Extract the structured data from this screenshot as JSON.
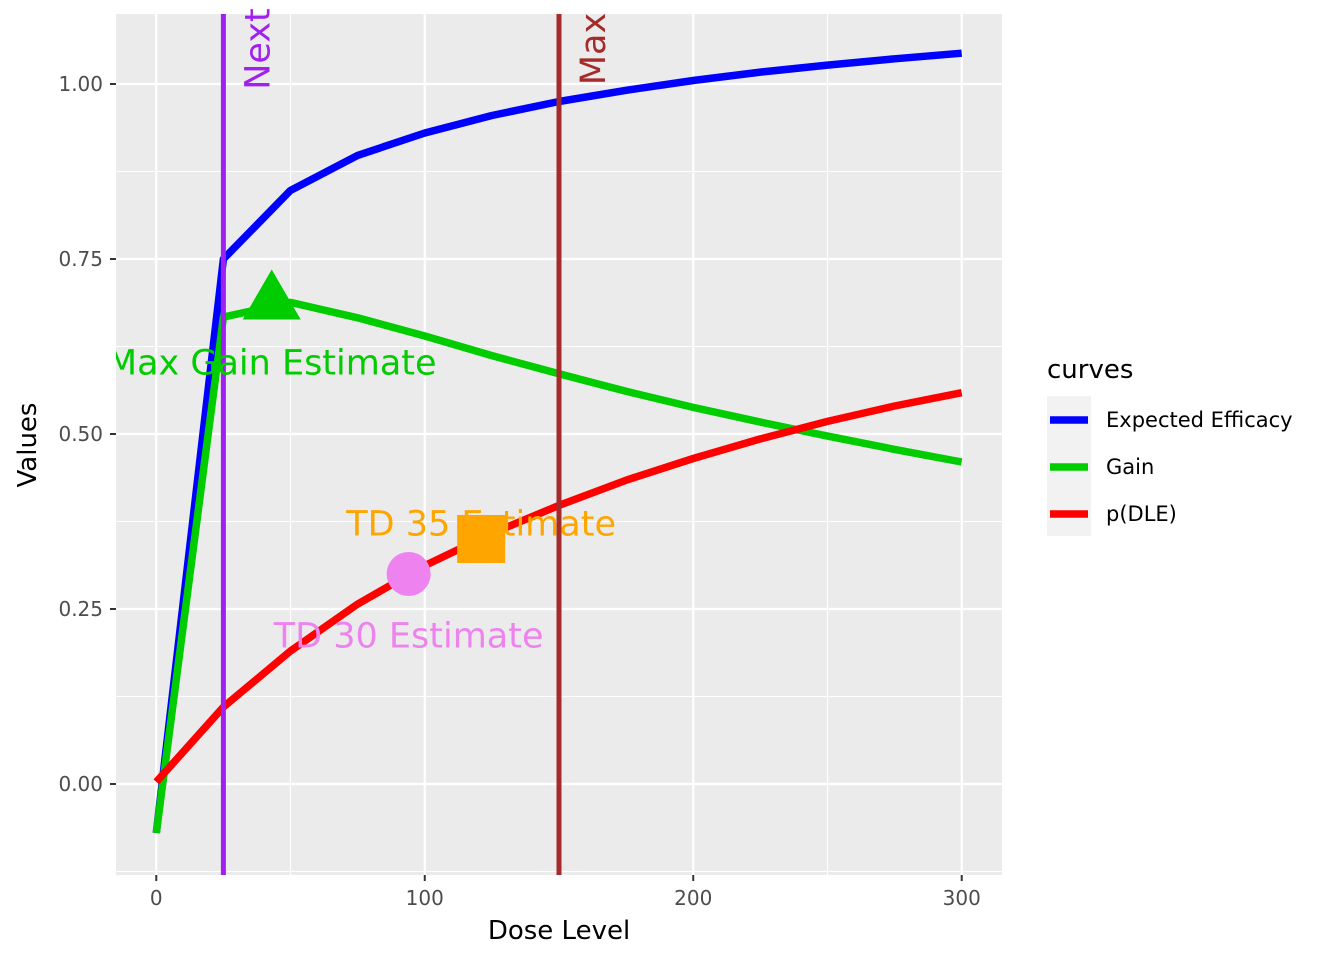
{
  "chart_data": {
    "type": "line",
    "xlabel": "Dose Level",
    "ylabel": "Values",
    "xlim": [
      -15,
      315
    ],
    "ylim": [
      -0.13,
      1.1
    ],
    "x_ticks": [
      0,
      100,
      200,
      300
    ],
    "x_tick_labels": [
      "0",
      "100",
      "200",
      "300"
    ],
    "y_ticks": [
      0,
      0.25,
      0.5,
      0.75,
      1.0
    ],
    "y_tick_labels": [
      "0.00",
      "0.25",
      "0.50",
      "0.75",
      "1.00"
    ],
    "grid": true,
    "legend": {
      "title": "curves",
      "position": "right",
      "entries": [
        "Expected Efficacy",
        "Gain",
        "p(DLE)"
      ]
    },
    "series": [
      {
        "name": "Expected Efficacy",
        "color": "#0000FF",
        "x": [
          0,
          25,
          50,
          75,
          100,
          125,
          150,
          175,
          200,
          225,
          250,
          275,
          300
        ],
        "y": [
          -0.07,
          0.75,
          0.848,
          0.898,
          0.93,
          0.955,
          0.975,
          0.991,
          1.005,
          1.017,
          1.027,
          1.036,
          1.044
        ]
      },
      {
        "name": "Gain",
        "color": "#00CC00",
        "x": [
          0,
          25,
          50,
          75,
          100,
          125,
          150,
          175,
          200,
          225,
          250,
          275,
          300
        ],
        "y": [
          -0.07,
          0.667,
          0.688,
          0.666,
          0.64,
          0.612,
          0.586,
          0.561,
          0.538,
          0.517,
          0.497,
          0.478,
          0.46
        ]
      },
      {
        "name": "p(DLE)",
        "color": "#FF0000",
        "x": [
          0,
          25,
          50,
          75,
          100,
          125,
          150,
          175,
          200,
          225,
          250,
          275,
          300
        ],
        "y": [
          0.003,
          0.11,
          0.19,
          0.257,
          0.312,
          0.358,
          0.398,
          0.434,
          0.465,
          0.493,
          0.518,
          0.54,
          0.559
        ]
      }
    ],
    "vlines": [
      {
        "x": 25,
        "label": "Next",
        "color": "#A020F0"
      },
      {
        "x": 150,
        "label": "Max",
        "color": "#A52A2A"
      }
    ],
    "markers": [
      {
        "label": "Max Gain Estimate",
        "shape": "triangle",
        "x": 43,
        "y": 0.695,
        "color": "#00CC00",
        "label_x": 43,
        "label_y": 0.585
      },
      {
        "label": "TD 35 Estimate",
        "shape": "square",
        "x": 121,
        "y": 0.35,
        "color": "#FFA500",
        "label_x": 121,
        "label_y": 0.355
      },
      {
        "label": "TD 30 Estimate",
        "shape": "circle",
        "x": 94,
        "y": 0.3,
        "color": "#EE82EE",
        "label_x": 94,
        "label_y": 0.195
      }
    ]
  }
}
